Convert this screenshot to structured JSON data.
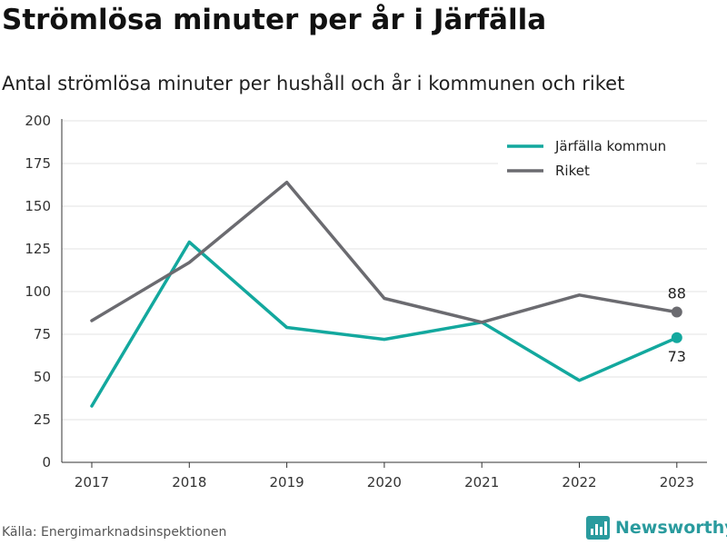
{
  "header": {
    "title": "Strömlösa minuter per år i Järfälla",
    "subtitle": "Antal strömlösa minuter per hushåll och år i kommunen och riket"
  },
  "footer": {
    "source": "Källa: Energimarknadsinspektionen",
    "brand": "Newsworthy",
    "brand_color": "#2a9b9e"
  },
  "chart_data": {
    "type": "line",
    "title": "Strömlösa minuter per år i Järfälla",
    "subtitle": "Antal strömlösa minuter per hushåll och år i kommunen och riket",
    "x": [
      "2017",
      "2018",
      "2019",
      "2020",
      "2021",
      "2022",
      "2023"
    ],
    "y_ticks": [
      0,
      25,
      50,
      75,
      100,
      125,
      150,
      175,
      200
    ],
    "ylim": [
      0,
      200
    ],
    "grid": true,
    "legend_position": "top-right",
    "series": [
      {
        "name": "Järfälla kommun",
        "color": "#13a89e",
        "values": [
          33,
          129,
          79,
          72,
          82,
          48,
          73
        ],
        "end_label": "73"
      },
      {
        "name": "Riket",
        "color": "#6b6b70",
        "values": [
          83,
          117,
          164,
          96,
          82,
          98,
          88
        ],
        "end_label": "88"
      }
    ]
  }
}
